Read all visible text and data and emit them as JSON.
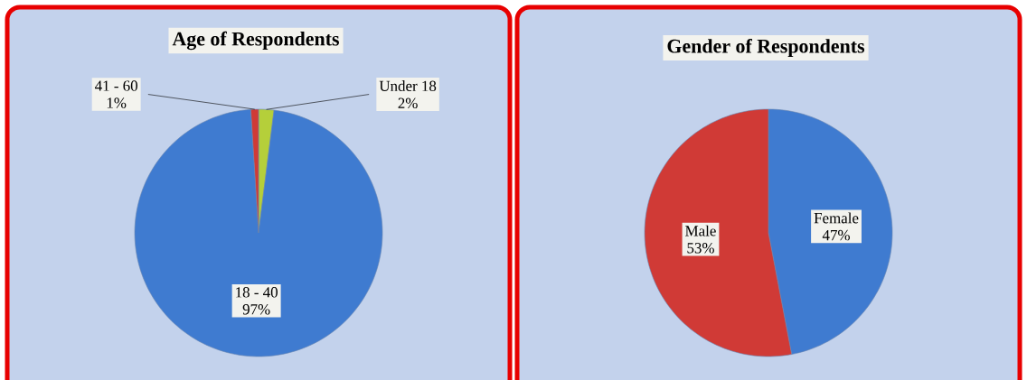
{
  "chart_data": [
    {
      "type": "pie",
      "title": "Age of Respondents",
      "categories": [
        "Under 18",
        "18 - 40",
        "41 - 60"
      ],
      "values": [
        2,
        97,
        1
      ],
      "colors": [
        "#b5cf3a",
        "#3f7bd0",
        "#d03a36"
      ],
      "value_labels": [
        "2%",
        "97%",
        "1%"
      ]
    },
    {
      "type": "pie",
      "title": "Gender of Respondents",
      "categories": [
        "Female",
        "Male"
      ],
      "values": [
        47,
        53
      ],
      "colors": [
        "#3f7bd0",
        "#d03a36"
      ],
      "value_labels": [
        "47%",
        "53%"
      ]
    }
  ]
}
